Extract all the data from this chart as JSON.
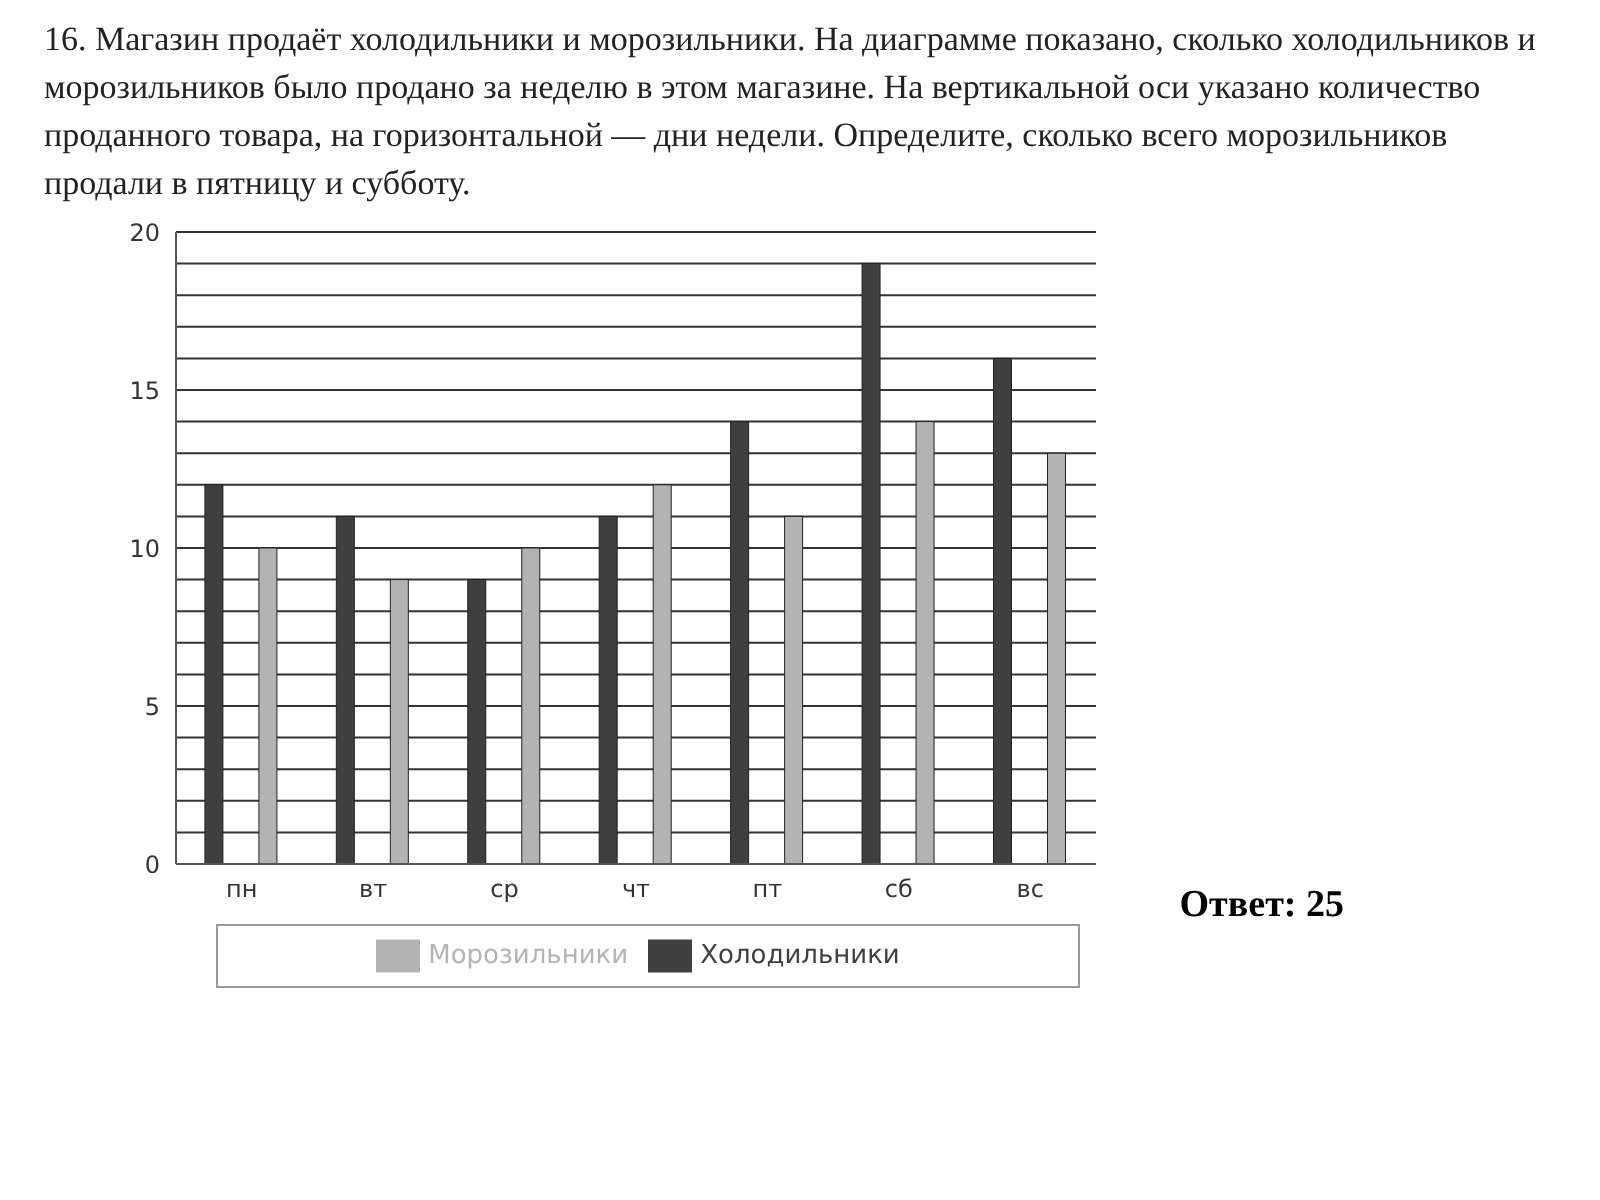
{
  "chart_data": {
    "type": "bar",
    "title": "16. Магазин продаёт холодильники и морозильники. На диаграмме показано, сколько холодильников и морозильников было продано за неделю в этом магазине. На вертикальной оси указано количество проданного товара, на горизонтальной — дни недели. Определите, сколько всего морозильников продали в пятницу и субботу.",
    "categories": [
      "пн",
      "вт",
      "ср",
      "чт",
      "пт",
      "сб",
      "вс"
    ],
    "series": [
      {
        "name": "Холодильники",
        "color": "#3f3f3f",
        "values": [
          12,
          11,
          9,
          11,
          14,
          19,
          16
        ]
      },
      {
        "name": "Морозильники",
        "color": "#b3b3b3",
        "values": [
          10,
          9,
          10,
          12,
          11,
          14,
          13
        ]
      }
    ],
    "ylim": [
      0,
      20
    ],
    "yticks": [
      0,
      {
        "value": 1,
        "label": null
      },
      {
        "value": 2,
        "label": null
      },
      {
        "value": 3,
        "label": null
      },
      {
        "value": 4,
        "label": null
      },
      5,
      {
        "value": 6,
        "label": null
      },
      {
        "value": 7,
        "label": null
      },
      {
        "value": 8,
        "label": null
      },
      {
        "value": 9,
        "label": null
      },
      10,
      {
        "value": 11,
        "label": null
      },
      {
        "value": 12,
        "label": null
      },
      {
        "value": 13,
        "label": null
      },
      {
        "value": 14,
        "label": null
      },
      15,
      {
        "value": 16,
        "label": null
      },
      {
        "value": 17,
        "label": null
      },
      {
        "value": 18,
        "label": null
      },
      {
        "value": 19,
        "label": null
      },
      20
    ],
    "grid": "y",
    "legend": "bottom",
    "annotations": [
      "Ответ: 25"
    ]
  }
}
